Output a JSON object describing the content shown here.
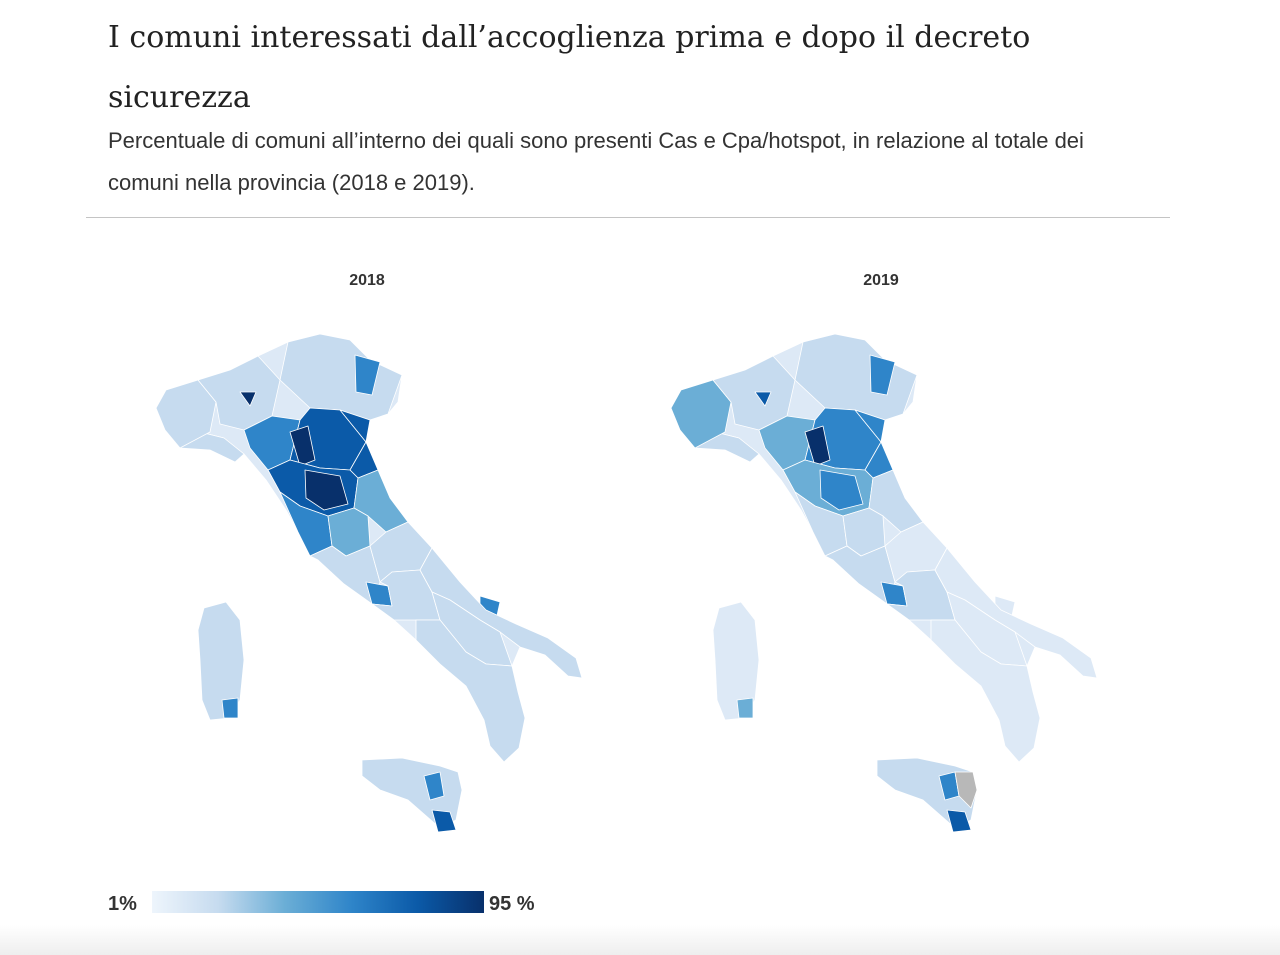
{
  "title": "I comuni interessati dall’accoglienza prima e dopo il decreto sicurezza",
  "subtitle": "Percentuale di comuni all’interno dei quali sono presenti Cas e Cpa/hotspot, in relazione al totale dei comuni nella provincia (2018 e 2019).",
  "panels": [
    {
      "label": "2018"
    },
    {
      "label": "2019"
    }
  ],
  "legend": {
    "min_label": "1%",
    "max_label": "95 %",
    "colors": [
      "#eef5fc",
      "#c6dbef",
      "#6baed6",
      "#2f85c9",
      "#0b5aa8",
      "#08306b"
    ]
  },
  "colors": {
    "land_base": "#dde9f6",
    "light": "#c6dbef",
    "medium": "#6baed6",
    "strong": "#2f85c9",
    "dark": "#0b5aa8",
    "darkest": "#08306b",
    "no_data": "#b8b8b8"
  }
}
